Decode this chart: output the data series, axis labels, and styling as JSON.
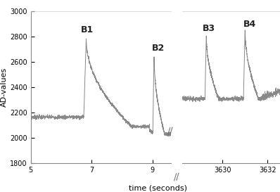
{
  "xlabel": "time (seconds)",
  "ylabel": "AD-values",
  "ylim": [
    1800,
    3000
  ],
  "yticks": [
    1800,
    2000,
    2200,
    2400,
    2600,
    2800,
    3000
  ],
  "left_xlim": [
    5,
    9.6
  ],
  "right_xlim": [
    3628.2,
    3632.8
  ],
  "left_xticks": [
    5,
    7,
    9
  ],
  "right_xticks": [
    3630,
    3632
  ],
  "line_color": "#888888",
  "background_color": "#ffffff",
  "b1_label": "B1",
  "b2_label": "B2",
  "b3_label": "B3",
  "b4_label": "B4"
}
